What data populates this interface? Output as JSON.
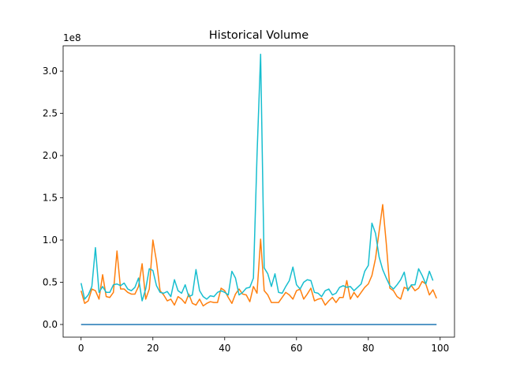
{
  "chart_data": {
    "type": "line",
    "title": "Historical Volume",
    "xlabel": "",
    "ylabel": "",
    "y_offset_label": "1e8",
    "xlim": [
      -5,
      104
    ],
    "ylim": [
      -15000000,
      330000000
    ],
    "x_ticks": [
      0,
      20,
      40,
      60,
      80,
      100
    ],
    "y_ticks": [
      0,
      50000000,
      100000000,
      150000000,
      200000000,
      250000000,
      300000000
    ],
    "y_tick_labels": [
      "0.0",
      "0.5",
      "1.0",
      "1.5",
      "2.0",
      "2.5",
      "3.0"
    ],
    "grid": false,
    "legend": "none",
    "series": [
      {
        "color": "#1f77b4",
        "values": [
          0,
          0,
          0,
          0,
          0,
          0,
          0,
          0,
          0,
          0,
          0,
          0,
          0,
          0,
          0,
          0,
          0,
          0,
          0,
          0,
          0,
          0,
          0,
          0,
          0,
          0,
          0,
          0,
          0,
          0,
          0,
          0,
          0,
          0,
          0,
          0,
          0,
          0,
          0,
          0,
          0,
          0,
          0,
          0,
          0,
          0,
          0,
          0,
          0,
          0,
          0,
          0,
          0,
          0,
          0,
          0,
          0,
          0,
          0,
          0,
          0,
          0,
          0,
          0,
          0,
          0,
          0,
          0,
          0,
          0,
          0,
          0,
          0,
          0,
          0,
          0,
          0,
          0,
          0,
          0,
          0,
          0,
          0,
          0,
          0,
          0,
          0,
          0,
          0,
          0,
          0,
          0,
          0,
          0,
          0,
          0,
          0,
          0,
          0,
          0
        ]
      },
      {
        "color": "#ff7f0e",
        "values": [
          40000000,
          25000000,
          28000000,
          42000000,
          40000000,
          30000000,
          59000000,
          33000000,
          32000000,
          38000000,
          87000000,
          42000000,
          42000000,
          38000000,
          36000000,
          36000000,
          45000000,
          72000000,
          30000000,
          42000000,
          100000000,
          75000000,
          40000000,
          35000000,
          28000000,
          30000000,
          23000000,
          33000000,
          30000000,
          25000000,
          36000000,
          25000000,
          23000000,
          30000000,
          22000000,
          25000000,
          27000000,
          26000000,
          26000000,
          43000000,
          40000000,
          32000000,
          25000000,
          36000000,
          42000000,
          36000000,
          35000000,
          27000000,
          45000000,
          37000000,
          101000000,
          40000000,
          35000000,
          26000000,
          26000000,
          26000000,
          32000000,
          38000000,
          35000000,
          30000000,
          40000000,
          42000000,
          30000000,
          36000000,
          43000000,
          28000000,
          30000000,
          31000000,
          23000000,
          28000000,
          32000000,
          26000000,
          32000000,
          32000000,
          52000000,
          30000000,
          38000000,
          32000000,
          38000000,
          44000000,
          48000000,
          58000000,
          78000000,
          110000000,
          142000000,
          96000000,
          43000000,
          40000000,
          33000000,
          30000000,
          44000000,
          42000000,
          46000000,
          40000000,
          43000000,
          51000000,
          48000000,
          35000000,
          41000000,
          31000000
        ]
      },
      {
        "color": "#17becf",
        "values": [
          49000000,
          30000000,
          35000000,
          45000000,
          91000000,
          38000000,
          45000000,
          38000000,
          38000000,
          47000000,
          48000000,
          46000000,
          49000000,
          42000000,
          40000000,
          44000000,
          55000000,
          28000000,
          42000000,
          66000000,
          64000000,
          46000000,
          38000000,
          37000000,
          39000000,
          33000000,
          53000000,
          40000000,
          37000000,
          47000000,
          33000000,
          35000000,
          65000000,
          40000000,
          33000000,
          30000000,
          34000000,
          33000000,
          38000000,
          40000000,
          38000000,
          35000000,
          63000000,
          55000000,
          35000000,
          38000000,
          43000000,
          44000000,
          55000000,
          200000000,
          320000000,
          67000000,
          60000000,
          45000000,
          60000000,
          38000000,
          37000000,
          45000000,
          52000000,
          68000000,
          47000000,
          42000000,
          50000000,
          53000000,
          52000000,
          38000000,
          37000000,
          33000000,
          40000000,
          42000000,
          35000000,
          37000000,
          44000000,
          46000000,
          44000000,
          45000000,
          40000000,
          44000000,
          48000000,
          63000000,
          70000000,
          120000000,
          108000000,
          80000000,
          65000000,
          55000000,
          46000000,
          42000000,
          47000000,
          53000000,
          62000000,
          40000000,
          47000000,
          47000000,
          66000000,
          58000000,
          48000000,
          63000000,
          52000000
        ]
      }
    ]
  }
}
